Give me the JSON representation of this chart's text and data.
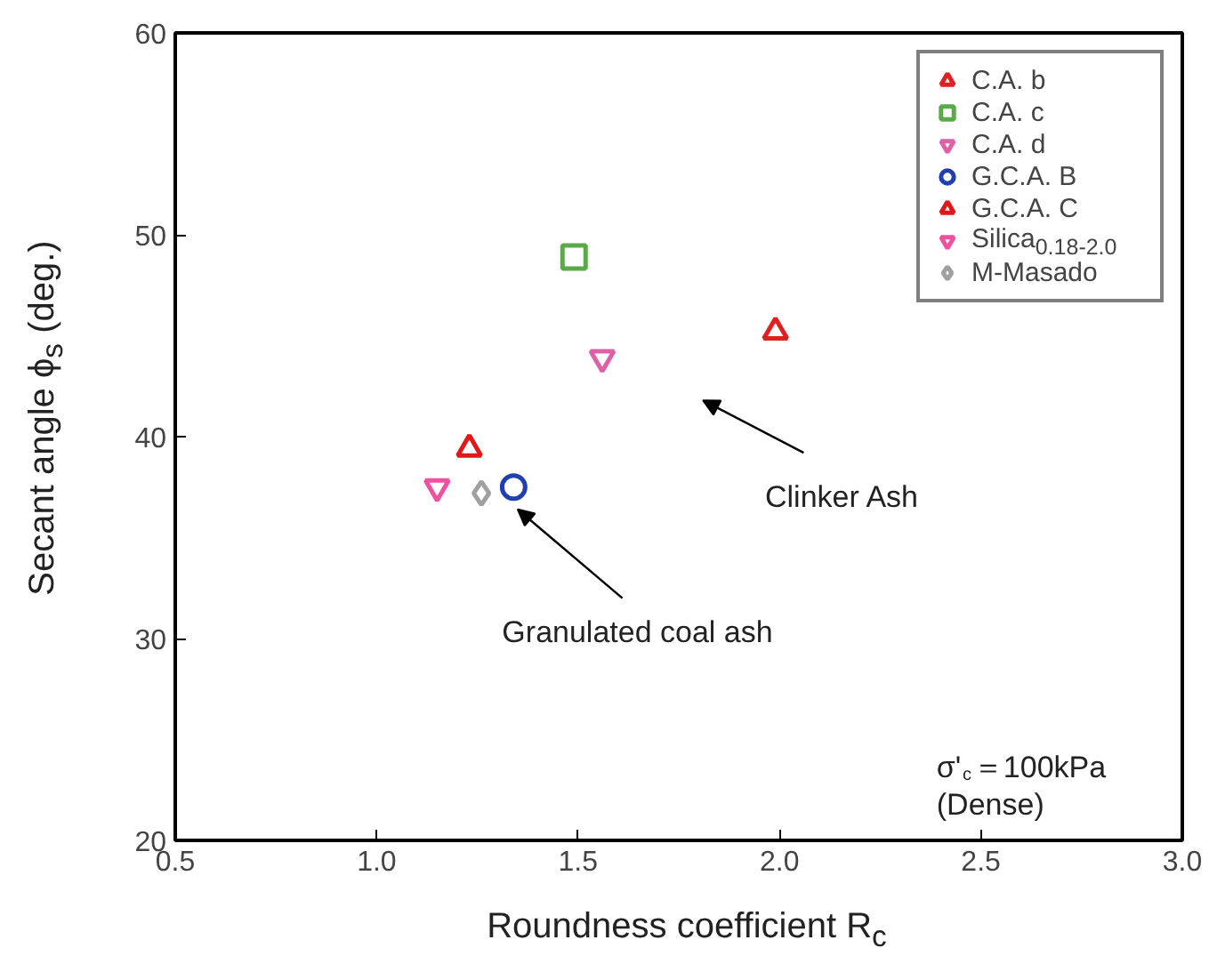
{
  "chart_data": {
    "type": "scatter",
    "xlabel": "Roundness coefficient R$_{c}$",
    "ylabel": "Secant angle ϕ$_{s}$ (deg.)",
    "xlim": [
      0.5,
      3.0
    ],
    "ylim": [
      20,
      60
    ],
    "xticks": [
      {
        "value": 0.5,
        "label": "0.5"
      },
      {
        "value": 1.0,
        "label": "1.0"
      },
      {
        "value": 1.5,
        "label": "1.5"
      },
      {
        "value": 2.0,
        "label": "2.0"
      },
      {
        "value": 2.5,
        "label": "2.5"
      },
      {
        "value": 3.0,
        "label": "3.0"
      }
    ],
    "yticks": [
      20,
      30,
      40,
      50,
      60
    ],
    "grid": false,
    "legend": "top right",
    "series": [
      {
        "name": "C.A. b",
        "color": "#e02020",
        "marker": "triangle",
        "x": [
          1.99
        ],
        "values": [
          45.2
        ]
      },
      {
        "name": "C.A. c",
        "color": "#5aaa4a",
        "marker": "square",
        "x": [
          1.49
        ],
        "values": [
          48.9
        ]
      },
      {
        "name": "C.A. d",
        "color": "#e060a8",
        "x": [
          1.56
        ],
        "values": [
          43.9
        ]
      },
      {
        "name": "G.C.A. B",
        "color": "#2040b0",
        "marker": "circle",
        "x": [
          1.34
        ],
        "values": [
          37.5
        ]
      },
      {
        "name": "G.C.A. C",
        "color": "#e01818",
        "marker": "triangle",
        "x": [
          1.23
        ],
        "values": [
          39.4
        ]
      },
      {
        "name": "Silica$_{0.18-2.0}$",
        "color": "#f050a0",
        "x": [
          1.15
        ],
        "values": [
          37.5
        ]
      },
      {
        "name": "M-Masado",
        "color": "#a0a0a0",
        "marker": "diamond",
        "x": [
          1.26
        ],
        "values": [
          37.2
        ]
      }
    ],
    "annotations": [
      "Clinker Ash",
      "Granulated coal ash",
      "σ'$_{c}$＝100kPa\n(Dense)"
    ]
  }
}
